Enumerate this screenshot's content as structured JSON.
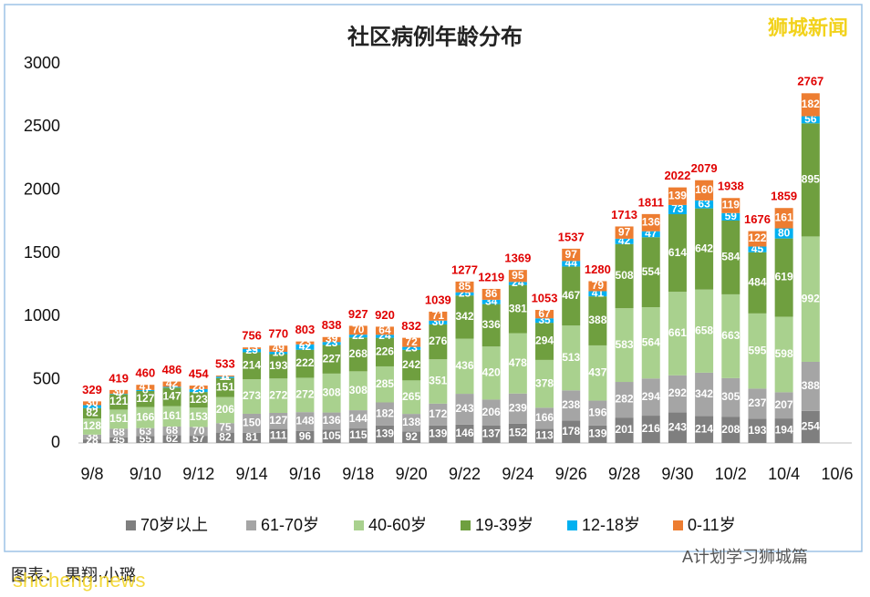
{
  "chart_data": {
    "type": "stacked-bar",
    "title": "社区病例年龄分布",
    "categories": [
      "9/8",
      null,
      "9/10",
      null,
      "9/12",
      null,
      "9/14",
      null,
      "9/16",
      null,
      "9/18",
      null,
      "9/20",
      null,
      "9/22",
      null,
      "9/24",
      null,
      "9/26",
      null,
      "9/28",
      null,
      "9/30",
      null,
      "10/2",
      null,
      "10/4",
      null,
      "10/6"
    ],
    "series": [
      {
        "name": "70岁以上",
        "color": "#7f7f7f",
        "values": [
          28,
          45,
          55,
          62,
          57,
          82,
          81,
          111,
          96,
          105,
          115,
          139,
          92,
          139,
          146,
          137,
          152,
          113,
          178,
          139,
          201,
          216,
          243,
          214,
          208,
          193,
          194,
          254,
          null
        ]
      },
      {
        "name": "61-70岁",
        "color": "#a5a5a5",
        "values": [
          38,
          68,
          63,
          68,
          70,
          75,
          150,
          127,
          148,
          136,
          144,
          182,
          138,
          172,
          243,
          206,
          239,
          166,
          238,
          196,
          282,
          294,
          292,
          342,
          305,
          237,
          207,
          388,
          null
        ]
      },
      {
        "name": "40-60岁",
        "color": "#a9d18e",
        "values": [
          128,
          151,
          166,
          161,
          153,
          206,
          273,
          272,
          272,
          308,
          308,
          285,
          265,
          351,
          436,
          420,
          478,
          378,
          513,
          437,
          583,
          564,
          661,
          658,
          663,
          595,
          598,
          992,
          null
        ]
      },
      {
        "name": "19-39岁",
        "color": "#6f9f3f",
        "values": [
          82,
          121,
          127,
          147,
          123,
          151,
          214,
          193,
          222,
          227,
          268,
          226,
          242,
          276,
          342,
          336,
          381,
          294,
          467,
          388,
          508,
          554,
          614,
          642,
          584,
          484,
          619,
          895,
          null
        ]
      },
      {
        "name": "12-18岁",
        "color": "#00b0f0",
        "values": [
          23,
          4,
          8,
          6,
          23,
          11,
          25,
          18,
          42,
          23,
          22,
          24,
          23,
          30,
          25,
          34,
          24,
          35,
          44,
          41,
          42,
          47,
          73,
          63,
          59,
          45,
          80,
          56,
          null
        ]
      },
      {
        "name": "0-11岁",
        "color": "#ed7d31",
        "values": [
          30,
          30,
          41,
          42,
          28,
          8,
          13,
          49,
          23,
          39,
          70,
          64,
          72,
          71,
          85,
          86,
          95,
          67,
          97,
          79,
          97,
          136,
          139,
          160,
          119,
          122,
          161,
          182,
          null
        ]
      }
    ],
    "totals": [
      329,
      419,
      460,
      486,
      454,
      533,
      756,
      770,
      803,
      838,
      927,
      920,
      832,
      1039,
      1277,
      1219,
      1369,
      1053,
      1537,
      1280,
      1713,
      1811,
      2022,
      2079,
      1938,
      1676,
      1859,
      2767,
      null
    ],
    "ylim": [
      0,
      3000
    ],
    "yticks": [
      0,
      500,
      1000,
      1500,
      2000,
      2500,
      3000
    ],
    "grid": false,
    "legend": "bottom"
  },
  "watermarks": {
    "brand": "狮城新闻",
    "credit": "图表： 果翔·小璐",
    "site": "shicheng.news",
    "account": "A计划学习狮城篇"
  }
}
